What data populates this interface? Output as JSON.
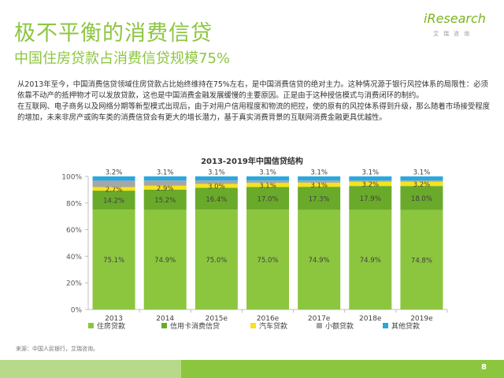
{
  "header": {
    "title": "极不平衡的消费信贷",
    "subtitle": "中国住房贷款占消费信贷规模75%"
  },
  "logo": {
    "name": "iResearch",
    "sub": "艾瑞咨询"
  },
  "body": {
    "paragraph1": "从2013年至今，中国消费信贷领域住房贷款占比始终维持在75%左右，是中国消费信贷的绝对主力。这种情况源于银行风控体系的局限性：必须依靠不动产的抵押物才可以发放贷款，这也是中国消费金融发展缓慢的主要原因。正是由于这种授信模式与消费闭环的制约。",
    "paragraph2": "在互联网、电子商务以及网络分期等新型模式出现后，由于对用户信用程度和物流的把控，使的原有的风控体系得到升级，那么随着市场接受程度的增加，未来非房产或购车类的消费信贷会有更大的增长潜力，基于真实消费背景的互联网消费金融更具优越性。"
  },
  "chart_data": {
    "type": "bar",
    "stacked": true,
    "title": "2013-2019年中国信贷结构",
    "xlabel": "",
    "ylabel": "",
    "ylim": [
      0,
      100
    ],
    "yticks": [
      "0%",
      "20%",
      "40%",
      "60%",
      "80%",
      "100%"
    ],
    "categories": [
      "2013",
      "2014",
      "2015e",
      "2016e",
      "2017e",
      "2018e",
      "2019e"
    ],
    "series": [
      {
        "name": "住房贷款",
        "color": "#8cc63f",
        "values": [
          75.1,
          74.9,
          75.0,
          75.0,
          74.9,
          74.9,
          74.8
        ],
        "labels": [
          "75.1%",
          "74.9%",
          "75.0%",
          "75.0%",
          "74.9%",
          "74.9%",
          "74.8%"
        ]
      },
      {
        "name": "信用卡消费信贷",
        "color": "#6aaa2a",
        "values": [
          14.2,
          15.2,
          16.4,
          17.0,
          17.3,
          17.9,
          18.0
        ],
        "labels": [
          "14.2%",
          "15.2%",
          "16.4%",
          "17.0%",
          "17.3%",
          "17.9%",
          "18.0%"
        ]
      },
      {
        "name": "汽车贷款",
        "color": "#f6e31c",
        "values": [
          2.7,
          2.9,
          3.0,
          3.1,
          3.1,
          3.2,
          3.2
        ],
        "labels": [
          "2.7%",
          "2.9%",
          "3.0%",
          "3.1%",
          "3.1%",
          "3.2%",
          "3.2%"
        ]
      },
      {
        "name": "小额贷款",
        "color": "#a6a6a6",
        "values": [
          4.8,
          3.9,
          2.5,
          1.8,
          1.6,
          0.9,
          0.9
        ],
        "labels": [
          "",
          "",
          "",
          "",
          "",
          "",
          ""
        ]
      },
      {
        "name": "其他贷款",
        "color": "#29a8e0",
        "values": [
          3.2,
          3.1,
          3.1,
          3.1,
          3.1,
          3.1,
          3.1
        ],
        "labels": [
          "3.2%",
          "3.1%",
          "3.1%",
          "3.1%",
          "3.1%",
          "3.1%",
          "3.1%"
        ]
      }
    ],
    "legend_position": "bottom",
    "grid": false
  },
  "source": "来源：中国人民银行，艾瑞咨询。",
  "page_number": "8"
}
